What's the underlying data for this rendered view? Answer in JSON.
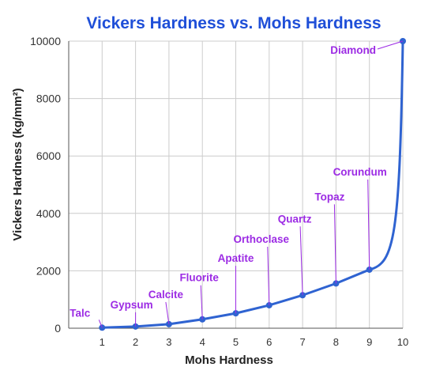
{
  "chart_data": {
    "type": "line",
    "title": "Vickers Hardness vs. Mohs Hardness",
    "xlabel": "Mohs Hardness",
    "ylabel": "Vickers Hardness (kg/mm²)",
    "xlim": [
      0,
      10
    ],
    "ylim": [
      0,
      10000
    ],
    "x_ticks": [
      "1",
      "2",
      "3",
      "4",
      "5",
      "6",
      "7",
      "8",
      "9",
      "10"
    ],
    "y_ticks": [
      "0",
      "2000",
      "4000",
      "6000",
      "8000",
      "10000"
    ],
    "grid": true,
    "series": [
      {
        "color": "#2f63d1",
        "points": [
          {
            "x": 1,
            "y": 20,
            "label": "Talc"
          },
          {
            "x": 2,
            "y": 60,
            "label": "Gypsum"
          },
          {
            "x": 3,
            "y": 140,
            "label": "Calcite"
          },
          {
            "x": 4,
            "y": 310,
            "label": "Fluorite"
          },
          {
            "x": 5,
            "y": 520,
            "label": "Apatite"
          },
          {
            "x": 6,
            "y": 800,
            "label": "Orthoclase"
          },
          {
            "x": 7,
            "y": 1150,
            "label": "Quartz"
          },
          {
            "x": 8,
            "y": 1560,
            "label": "Topaz"
          },
          {
            "x": 9,
            "y": 2040,
            "label": "Corundum"
          },
          {
            "x": 10,
            "y": 10000,
            "label": "Diamond"
          }
        ]
      }
    ],
    "colors": {
      "title": "#1f4fd8",
      "labels": "#9c2be4",
      "line": "#2f63d1"
    }
  }
}
